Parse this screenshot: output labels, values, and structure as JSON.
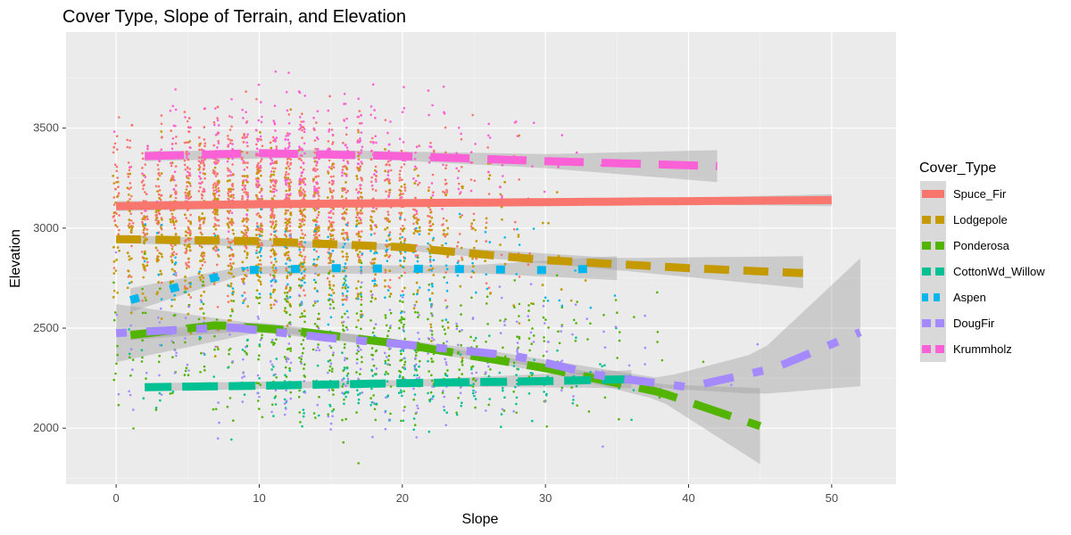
{
  "chart_data": {
    "type": "scatter",
    "title": "Cover Type, Slope of Terrain, and Elevation",
    "xlabel": "Slope",
    "ylabel": "Elevation",
    "xlim": [
      -3.5,
      54.5
    ],
    "ylim": [
      1720,
      3980
    ],
    "x_ticks": [
      0,
      10,
      20,
      30,
      40,
      50
    ],
    "y_ticks": [
      2000,
      2500,
      3000,
      3500
    ],
    "grid": true,
    "legend": {
      "title": "Cover_Type",
      "position": "right"
    },
    "series": [
      {
        "name": "Spuce_Fir",
        "color": "#F8766D",
        "dash": "solid",
        "cloud": {
          "cx": 11,
          "cy": 3130,
          "sx": 7,
          "sy": 200,
          "n": 1400,
          "xmax": 50
        },
        "smooth": [
          [
            0,
            3110
          ],
          [
            10,
            3120
          ],
          [
            20,
            3125
          ],
          [
            30,
            3130
          ],
          [
            40,
            3135
          ],
          [
            50,
            3140
          ]
        ],
        "band": [
          [
            0,
            3085,
            3135
          ],
          [
            20,
            3112,
            3138
          ],
          [
            40,
            3118,
            3152
          ],
          [
            50,
            3110,
            3170
          ]
        ]
      },
      {
        "name": "Lodgepole",
        "color": "#C49A00",
        "dash": "dashed",
        "cloud": {
          "cx": 12,
          "cy": 2950,
          "sx": 8,
          "sy": 200,
          "n": 1500,
          "xmax": 48
        },
        "smooth": [
          [
            0,
            2945
          ],
          [
            10,
            2935
          ],
          [
            20,
            2905
          ],
          [
            30,
            2840
          ],
          [
            40,
            2800
          ],
          [
            48,
            2775
          ]
        ],
        "band": [
          [
            0,
            2925,
            2965
          ],
          [
            20,
            2890,
            2920
          ],
          [
            35,
            2790,
            2850
          ],
          [
            48,
            2700,
            2860
          ]
        ]
      },
      {
        "name": "Ponderosa",
        "color": "#53B400",
        "dash": "longdash",
        "cloud": {
          "cx": 18,
          "cy": 2400,
          "sx": 9,
          "sy": 180,
          "n": 500,
          "xmax": 45
        },
        "smooth": [
          [
            1,
            2465
          ],
          [
            7,
            2515
          ],
          [
            12,
            2490
          ],
          [
            20,
            2420
          ],
          [
            30,
            2300
          ],
          [
            38,
            2180
          ],
          [
            45,
            2010
          ]
        ],
        "band": [
          [
            1,
            2440,
            2490
          ],
          [
            10,
            2490,
            2530
          ],
          [
            20,
            2400,
            2440
          ],
          [
            30,
            2280,
            2320
          ],
          [
            38,
            2140,
            2220
          ],
          [
            45,
            1820,
            2200
          ]
        ]
      },
      {
        "name": "CottonWd_Willow",
        "color": "#00C094",
        "dash": "twodash",
        "cloud": {
          "cx": 20,
          "cy": 2220,
          "sx": 8,
          "sy": 110,
          "n": 200,
          "xmax": 40
        },
        "smooth": [
          [
            2,
            2205
          ],
          [
            10,
            2212
          ],
          [
            20,
            2225
          ],
          [
            30,
            2235
          ],
          [
            36,
            2245
          ]
        ],
        "band": [
          [
            2,
            2185,
            2225
          ],
          [
            20,
            2210,
            2240
          ],
          [
            36,
            2200,
            2290
          ]
        ]
      },
      {
        "name": "Aspen",
        "color": "#00B6EB",
        "dash": "dotted",
        "cloud": {
          "cx": 17,
          "cy": 2800,
          "sx": 8,
          "sy": 140,
          "n": 200,
          "xmax": 35
        },
        "smooth": [
          [
            1,
            2640
          ],
          [
            5,
            2720
          ],
          [
            9,
            2790
          ],
          [
            15,
            2800
          ],
          [
            25,
            2795
          ],
          [
            30,
            2790
          ],
          [
            35,
            2800
          ]
        ],
        "band": [
          [
            1,
            2580,
            2700
          ],
          [
            9,
            2770,
            2810
          ],
          [
            25,
            2775,
            2815
          ],
          [
            35,
            2740,
            2860
          ]
        ]
      },
      {
        "name": "DougFir",
        "color": "#A58AFF",
        "dash": "dotdash",
        "cloud": {
          "cx": 18,
          "cy": 2380,
          "sx": 10,
          "sy": 190,
          "n": 260,
          "xmax": 52
        },
        "smooth": [
          [
            0,
            2475
          ],
          [
            8,
            2505
          ],
          [
            15,
            2450
          ],
          [
            20,
            2420
          ],
          [
            28,
            2360
          ],
          [
            34,
            2260
          ],
          [
            40,
            2205
          ],
          [
            46,
            2300
          ],
          [
            52,
            2480
          ]
        ],
        "band": [
          [
            0,
            2330,
            2620
          ],
          [
            10,
            2480,
            2520
          ],
          [
            25,
            2360,
            2400
          ],
          [
            38,
            2200,
            2250
          ],
          [
            45,
            2170,
            2380
          ],
          [
            52,
            2210,
            2850
          ]
        ]
      },
      {
        "name": "Krummholz",
        "color": "#FB61D7",
        "dash": "longdash",
        "cloud": {
          "cx": 14,
          "cy": 3380,
          "sx": 7,
          "sy": 150,
          "n": 350,
          "xmax": 42
        },
        "smooth": [
          [
            2,
            3360
          ],
          [
            10,
            3375
          ],
          [
            20,
            3360
          ],
          [
            30,
            3335
          ],
          [
            42,
            3310
          ]
        ],
        "band": [
          [
            2,
            3335,
            3385
          ],
          [
            15,
            3355,
            3390
          ],
          [
            30,
            3300,
            3370
          ],
          [
            42,
            3230,
            3390
          ]
        ]
      }
    ]
  }
}
